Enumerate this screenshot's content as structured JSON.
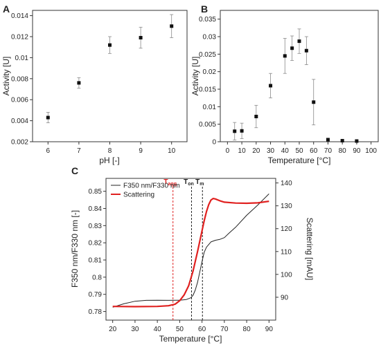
{
  "chart_data": [
    {
      "panel": "A",
      "type": "scatter",
      "xlabel": "pH [-]",
      "ylabel": "Activity [U]",
      "xlim": [
        5.5,
        10.5
      ],
      "ylim": [
        0.002,
        0.0145
      ],
      "xticks": [
        "6",
        "7",
        "8",
        "9",
        "10"
      ],
      "yticks": [
        "0.002",
        "0.004",
        "0.006",
        "0.008",
        "0.01",
        "0.012",
        "0.014"
      ],
      "grid": false,
      "points": [
        {
          "x": 6,
          "y": 0.0043,
          "err": 0.0005
        },
        {
          "x": 7,
          "y": 0.0076,
          "err": 0.0005
        },
        {
          "x": 8,
          "y": 0.0112,
          "err": 0.0008
        },
        {
          "x": 9,
          "y": 0.0119,
          "err": 0.001
        },
        {
          "x": 10,
          "y": 0.013,
          "err": 0.0011
        }
      ]
    },
    {
      "panel": "B",
      "type": "scatter",
      "xlabel": "Temperature [°C]",
      "ylabel": "Activity [U]",
      "xlim": [
        -5,
        105
      ],
      "ylim": [
        0,
        0.0375
      ],
      "xticks": [
        "0",
        "10",
        "20",
        "30",
        "40",
        "50",
        "60",
        "70",
        "80",
        "90",
        "100"
      ],
      "yticks": [
        "0",
        "0.005",
        "0.01",
        "0.015",
        "0.02",
        "0.025",
        "0.03",
        "0.035"
      ],
      "grid": false,
      "points": [
        {
          "x": 5,
          "y": 0.003,
          "err": 0.0025
        },
        {
          "x": 10,
          "y": 0.0031,
          "err": 0.0022
        },
        {
          "x": 20,
          "y": 0.0072,
          "err": 0.0032
        },
        {
          "x": 30,
          "y": 0.016,
          "err": 0.0035
        },
        {
          "x": 40,
          "y": 0.0245,
          "err": 0.005
        },
        {
          "x": 45,
          "y": 0.0267,
          "err": 0.0035
        },
        {
          "x": 50,
          "y": 0.0287,
          "err": 0.0035
        },
        {
          "x": 55,
          "y": 0.026,
          "err": 0.004
        },
        {
          "x": 60,
          "y": 0.0113,
          "err": 0.0065
        },
        {
          "x": 70,
          "y": 0.0006,
          "err": 0.0003
        },
        {
          "x": 80,
          "y": 0.0003,
          "err": 0.0002
        },
        {
          "x": 90,
          "y": 0.0002,
          "err": 0.0001
        }
      ]
    },
    {
      "panel": "C",
      "type": "line",
      "xlabel": "Temperature [°C]",
      "ylabel_left": "F350 nm/F330 nm [-]",
      "ylabel_right": "Scattering [mAU]",
      "xlim": [
        17,
        93
      ],
      "ylim_left": [
        0.775,
        0.8575
      ],
      "ylim_right": [
        80,
        142
      ],
      "xticks": [
        "20",
        "30",
        "40",
        "50",
        "60",
        "70",
        "80",
        "90"
      ],
      "yticks_left": [
        "0.78",
        "0.79",
        "0.8",
        "0.81",
        "0.82",
        "0.83",
        "0.84",
        "0.85"
      ],
      "yticks_right": [
        "90",
        "100",
        "110",
        "120",
        "130",
        "140"
      ],
      "legend": {
        "position": "top-left",
        "entries": [
          "F350 nm/F330 nm",
          "Scattering"
        ]
      },
      "vlines": [
        {
          "label": "T",
          "sub": "agg",
          "x": 47,
          "color": "#e0201f"
        },
        {
          "label": "T",
          "sub": "on",
          "x": 55.3,
          "color": "#222222"
        },
        {
          "label": "T",
          "sub": "m",
          "x": 60.2,
          "color": "#222222"
        }
      ],
      "series": [
        {
          "name": "F350 nm/F330 nm",
          "axis": "left",
          "color": "#222222",
          "x": [
            20,
            25,
            30,
            35,
            40,
            45,
            50,
            53,
            55,
            56,
            57,
            58,
            59,
            60,
            61,
            62,
            64,
            66,
            68,
            70,
            72,
            75,
            80,
            85,
            90
          ],
          "y": [
            0.7825,
            0.7845,
            0.786,
            0.7865,
            0.7866,
            0.7865,
            0.7866,
            0.787,
            0.788,
            0.7895,
            0.7925,
            0.797,
            0.803,
            0.809,
            0.8145,
            0.8175,
            0.8205,
            0.8215,
            0.822,
            0.823,
            0.8255,
            0.829,
            0.836,
            0.842,
            0.8485
          ]
        },
        {
          "name": "Scattering",
          "axis": "right",
          "color": "#e0201f",
          "x": [
            20,
            30,
            40,
            45,
            48,
            50,
            52,
            54,
            56,
            58,
            60,
            61,
            62,
            63,
            64,
            65,
            66,
            68,
            70,
            75,
            80,
            85,
            90
          ],
          "y": [
            86.0,
            85.9,
            86.0,
            86.3,
            87.0,
            88.5,
            91.0,
            95.0,
            101.5,
            110.0,
            119.0,
            123.5,
            127.5,
            130.5,
            132.5,
            133.2,
            133.0,
            132.2,
            131.6,
            131.2,
            131.1,
            131.3,
            132.0
          ]
        }
      ]
    }
  ]
}
